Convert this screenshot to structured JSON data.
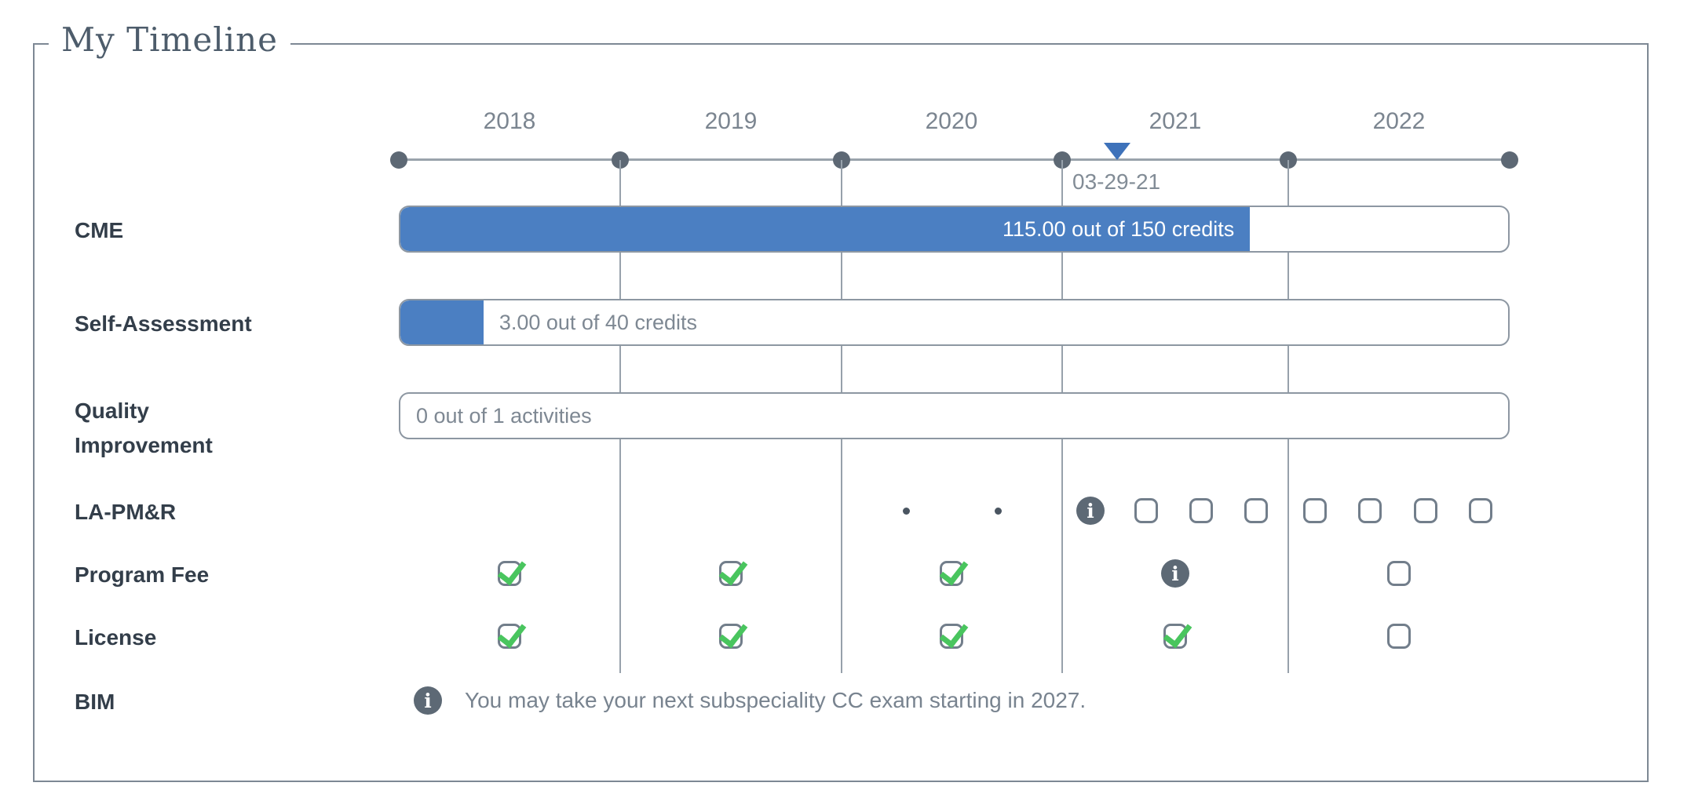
{
  "panel": {
    "title": "My Timeline"
  },
  "timeline": {
    "years": [
      "2018",
      "2019",
      "2020",
      "2021",
      "2022"
    ],
    "marker_date": "03-29-21",
    "marker_icon": "triangle-down"
  },
  "bars": {
    "cme": {
      "label": "CME",
      "text": "115.00 out of 150 credits",
      "current": 115.0,
      "total": 150,
      "unit": "credits",
      "percent": 76.7,
      "text_position": "inside"
    },
    "self_assessment": {
      "label": "Self-Assessment",
      "text": "3.00 out of 40 credits",
      "current": 3.0,
      "total": 40,
      "unit": "credits",
      "percent": 7.5,
      "text_position": "after"
    },
    "quality_improvement": {
      "label_line1": "Quality",
      "label_line2": "Improvement",
      "text": "0 out of 1 activities",
      "current": 0,
      "total": 1,
      "unit": "activities",
      "percent": 0,
      "text_position": "after"
    }
  },
  "status_rows": [
    {
      "id": "la_pmr",
      "label": "LA-PM&R",
      "items": [
        {
          "icon": "mini-dot"
        },
        {
          "icon": "mini-dot"
        },
        {
          "icon": "info"
        },
        {
          "icon": "checkbox",
          "checked": false
        },
        {
          "icon": "checkbox",
          "checked": false
        },
        {
          "icon": "checkbox",
          "checked": false
        },
        {
          "icon": "checkbox",
          "checked": false
        },
        {
          "icon": "checkbox",
          "checked": false
        },
        {
          "icon": "checkbox",
          "checked": false
        },
        {
          "icon": "checkbox",
          "checked": false
        }
      ]
    },
    {
      "id": "program_fee",
      "label": "Program Fee",
      "items": [
        {
          "icon": "checkbox",
          "checked": true
        },
        {
          "icon": "checkbox",
          "checked": true
        },
        {
          "icon": "checkbox",
          "checked": true
        },
        {
          "icon": "info"
        },
        {
          "icon": "checkbox",
          "checked": false
        }
      ]
    },
    {
      "id": "license",
      "label": "License",
      "items": [
        {
          "icon": "checkbox",
          "checked": true
        },
        {
          "icon": "checkbox",
          "checked": true
        },
        {
          "icon": "checkbox",
          "checked": true
        },
        {
          "icon": "checkbox",
          "checked": true
        },
        {
          "icon": "checkbox",
          "checked": false
        }
      ]
    }
  ],
  "bim": {
    "label": "BIM",
    "info_text": "You may take your next subspeciality CC exam starting in 2027."
  },
  "colors": {
    "accent_blue": "#4b7fc2",
    "marker_blue": "#3e72ba",
    "check_green": "#49c55e",
    "info_gray": "#5d6975",
    "dot_gray": "#5d6874",
    "grid_gray": "#97a1ab"
  }
}
